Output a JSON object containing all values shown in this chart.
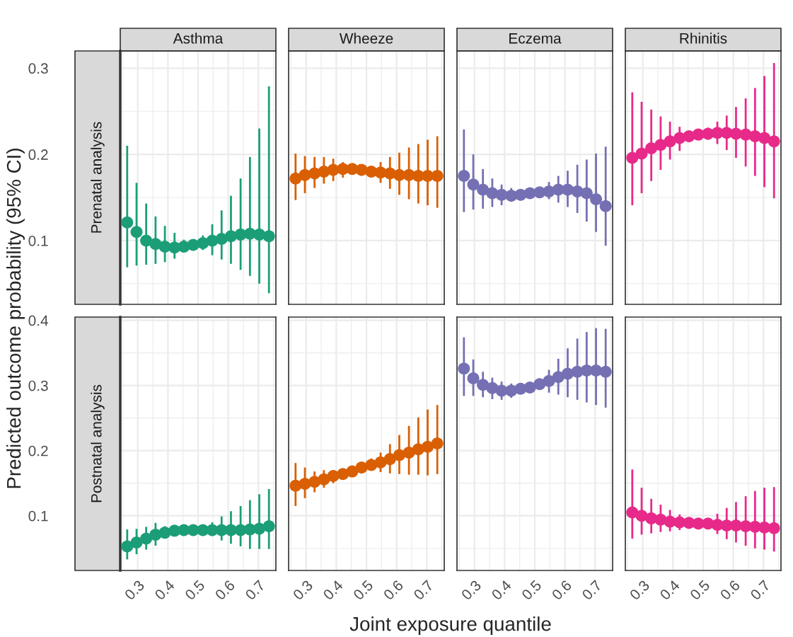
{
  "chart_data": [
    {
      "type": "scatter",
      "title": "Asthma",
      "ylabel": "Predicted outcome probability (95% CI)",
      "annotations": [
        "Prenatal analysis"
      ],
      "tick_labels": "y",
      "grid": true,
      "marker": "circle",
      "xlim": [
        0.242,
        0.758
      ],
      "ylim": [
        0.026,
        0.32
      ],
      "xticks": [
        0.3,
        0.4,
        0.5,
        0.6,
        0.7
      ],
      "yticks": [
        0.1,
        0.2,
        0.3
      ],
      "x": [
        0.265,
        0.296,
        0.328,
        0.359,
        0.39,
        0.422,
        0.453,
        0.484,
        0.516,
        0.547,
        0.578,
        0.609,
        0.641,
        0.672,
        0.703,
        0.735
      ],
      "series": [
        {
          "color": "#1b9e77",
          "values": [
            0.121,
            0.11,
            0.1,
            0.096,
            0.093,
            0.092,
            0.093,
            0.095,
            0.097,
            0.1,
            0.102,
            0.105,
            0.107,
            0.108,
            0.107,
            0.105
          ],
          "errors": [
            [
              0.069,
              0.21
            ],
            [
              0.071,
              0.167
            ],
            [
              0.072,
              0.143
            ],
            [
              0.073,
              0.128
            ],
            [
              0.075,
              0.117
            ],
            [
              0.079,
              0.109
            ],
            [
              0.087,
              0.101
            ],
            null,
            [
              0.089,
              0.106
            ],
            [
              0.083,
              0.119
            ],
            [
              0.078,
              0.135
            ],
            [
              0.073,
              0.152
            ],
            [
              0.066,
              0.172
            ],
            [
              0.059,
              0.197
            ],
            [
              0.05,
              0.23
            ],
            [
              0.039,
              0.279
            ]
          ]
        }
      ]
    },
    {
      "type": "scatter",
      "title": "Wheeze",
      "tick_labels": false,
      "grid": true,
      "marker": "circle",
      "xlim": [
        0.242,
        0.758
      ],
      "ylim": [
        0.026,
        0.32
      ],
      "xticks": [
        0.3,
        0.4,
        0.5,
        0.6,
        0.7
      ],
      "yticks": [
        0.1,
        0.2,
        0.3
      ],
      "x": [
        0.265,
        0.296,
        0.328,
        0.359,
        0.39,
        0.422,
        0.453,
        0.484,
        0.516,
        0.547,
        0.578,
        0.609,
        0.641,
        0.672,
        0.703,
        0.735
      ],
      "series": [
        {
          "color": "#d95f02",
          "values": [
            0.172,
            0.176,
            0.178,
            0.18,
            0.182,
            0.183,
            0.183,
            0.182,
            0.18,
            0.179,
            0.178,
            0.176,
            0.176,
            0.175,
            0.175,
            0.175
          ],
          "errors": [
            [
              0.147,
              0.201
            ],
            [
              0.155,
              0.198
            ],
            [
              0.161,
              0.197
            ],
            [
              0.166,
              0.197
            ],
            [
              0.169,
              0.195
            ],
            [
              0.173,
              0.191
            ],
            [
              0.18,
              0.186
            ],
            [
              0.179,
              0.185
            ],
            [
              0.177,
              0.183
            ],
            [
              0.167,
              0.191
            ],
            [
              0.16,
              0.197
            ],
            [
              0.153,
              0.202
            ],
            [
              0.148,
              0.208
            ],
            [
              0.143,
              0.212
            ],
            [
              0.141,
              0.217
            ],
            [
              0.138,
              0.221
            ]
          ]
        }
      ]
    },
    {
      "type": "scatter",
      "title": "Eczema",
      "tick_labels": false,
      "grid": true,
      "marker": "circle",
      "xlim": [
        0.242,
        0.758
      ],
      "ylim": [
        0.026,
        0.32
      ],
      "xticks": [
        0.3,
        0.4,
        0.5,
        0.6,
        0.7
      ],
      "yticks": [
        0.1,
        0.2,
        0.3
      ],
      "x": [
        0.265,
        0.296,
        0.328,
        0.359,
        0.39,
        0.422,
        0.453,
        0.484,
        0.516,
        0.547,
        0.578,
        0.609,
        0.641,
        0.672,
        0.703,
        0.735
      ],
      "series": [
        {
          "color": "#7570b3",
          "values": [
            0.175,
            0.165,
            0.159,
            0.155,
            0.153,
            0.152,
            0.153,
            0.155,
            0.156,
            0.157,
            0.159,
            0.159,
            0.157,
            0.155,
            0.148,
            0.14
          ],
          "errors": [
            [
              0.133,
              0.229
            ],
            [
              0.136,
              0.2
            ],
            [
              0.137,
              0.183
            ],
            [
              0.139,
              0.172
            ],
            [
              0.141,
              0.165
            ],
            [
              0.145,
              0.161
            ],
            [
              0.15,
              0.156
            ],
            [
              0.152,
              0.158
            ],
            [
              0.153,
              0.159
            ],
            [
              0.148,
              0.168
            ],
            [
              0.144,
              0.175
            ],
            [
              0.139,
              0.181
            ],
            [
              0.132,
              0.188
            ],
            [
              0.122,
              0.194
            ],
            [
              0.11,
              0.201
            ],
            [
              0.094,
              0.209
            ]
          ]
        }
      ]
    },
    {
      "type": "scatter",
      "title": "Rhinitis",
      "tick_labels": false,
      "grid": true,
      "marker": "circle",
      "xlim": [
        0.242,
        0.758
      ],
      "ylim": [
        0.026,
        0.32
      ],
      "xticks": [
        0.3,
        0.4,
        0.5,
        0.6,
        0.7
      ],
      "yticks": [
        0.1,
        0.2,
        0.3
      ],
      "x": [
        0.265,
        0.296,
        0.328,
        0.359,
        0.39,
        0.422,
        0.453,
        0.484,
        0.516,
        0.547,
        0.578,
        0.609,
        0.641,
        0.672,
        0.703,
        0.735
      ],
      "series": [
        {
          "color": "#e7298a",
          "values": [
            0.196,
            0.201,
            0.207,
            0.211,
            0.215,
            0.219,
            0.221,
            0.223,
            0.224,
            0.225,
            0.225,
            0.224,
            0.223,
            0.221,
            0.219,
            0.215
          ],
          "errors": [
            [
              0.141,
              0.272
            ],
            [
              0.155,
              0.261
            ],
            [
              0.169,
              0.252
            ],
            [
              0.182,
              0.244
            ],
            [
              0.194,
              0.238
            ],
            [
              0.204,
              0.232
            ],
            [
              0.218,
              0.224
            ],
            [
              0.22,
              0.226
            ],
            [
              0.217,
              0.231
            ],
            [
              0.212,
              0.238
            ],
            [
              0.205,
              0.245
            ],
            [
              0.196,
              0.255
            ],
            [
              0.186,
              0.265
            ],
            [
              0.175,
              0.277
            ],
            [
              0.162,
              0.291
            ],
            [
              0.149,
              0.306
            ]
          ]
        }
      ]
    },
    {
      "type": "scatter",
      "xlabel": "Joint exposure quantile",
      "annotations": [
        "Postnatal analysis"
      ],
      "grid": true,
      "marker": "circle",
      "xlim": [
        0.242,
        0.758
      ],
      "ylim": [
        0.016,
        0.405
      ],
      "xticks": [
        0.3,
        0.4,
        0.5,
        0.6,
        0.7
      ],
      "yticks": [
        0.1,
        0.2,
        0.3,
        0.4
      ],
      "x": [
        0.265,
        0.296,
        0.328,
        0.359,
        0.39,
        0.422,
        0.453,
        0.484,
        0.516,
        0.547,
        0.578,
        0.609,
        0.641,
        0.672,
        0.703,
        0.735
      ],
      "series": [
        {
          "color": "#1b9e77",
          "values": [
            0.053,
            0.059,
            0.065,
            0.071,
            0.074,
            0.077,
            0.078,
            0.078,
            0.078,
            0.078,
            0.078,
            0.078,
            0.078,
            0.079,
            0.08,
            0.084
          ],
          "errors": [
            [
              0.033,
              0.079
            ],
            [
              0.041,
              0.08
            ],
            [
              0.048,
              0.083
            ],
            [
              0.054,
              0.089
            ],
            [
              0.066,
              0.084
            ],
            [
              0.071,
              0.083
            ],
            null,
            null,
            [
              0.073,
              0.084
            ],
            [
              0.069,
              0.09
            ],
            [
              0.062,
              0.099
            ],
            [
              0.057,
              0.107
            ],
            [
              0.053,
              0.115
            ],
            [
              0.049,
              0.124
            ],
            [
              0.049,
              0.133
            ],
            [
              0.049,
              0.141
            ]
          ]
        }
      ]
    },
    {
      "type": "scatter",
      "tick_labels": "x",
      "grid": true,
      "marker": "circle",
      "xlim": [
        0.242,
        0.758
      ],
      "ylim": [
        0.016,
        0.405
      ],
      "xticks": [
        0.3,
        0.4,
        0.5,
        0.6,
        0.7
      ],
      "yticks": [
        0.1,
        0.2,
        0.3,
        0.4
      ],
      "x": [
        0.265,
        0.296,
        0.328,
        0.359,
        0.39,
        0.422,
        0.453,
        0.484,
        0.516,
        0.547,
        0.578,
        0.609,
        0.641,
        0.672,
        0.703,
        0.735
      ],
      "series": [
        {
          "color": "#d95f02",
          "values": [
            0.146,
            0.149,
            0.152,
            0.156,
            0.161,
            0.164,
            0.168,
            0.174,
            0.178,
            0.182,
            0.187,
            0.193,
            0.197,
            0.202,
            0.206,
            0.211
          ],
          "errors": [
            [
              0.115,
              0.181
            ],
            [
              0.127,
              0.174
            ],
            [
              0.136,
              0.168
            ],
            [
              0.143,
              0.17
            ],
            [
              0.15,
              0.17
            ],
            [
              0.161,
              0.167
            ],
            [
              0.165,
              0.171
            ],
            [
              0.171,
              0.177
            ],
            [
              0.17,
              0.188
            ],
            [
              0.167,
              0.197
            ],
            [
              0.165,
              0.21
            ],
            [
              0.164,
              0.224
            ],
            [
              0.163,
              0.238
            ],
            [
              0.163,
              0.251
            ],
            [
              0.162,
              0.263
            ],
            [
              0.164,
              0.27
            ]
          ]
        }
      ]
    },
    {
      "type": "scatter",
      "tick_labels": "x",
      "grid": true,
      "marker": "circle",
      "xlim": [
        0.242,
        0.758
      ],
      "ylim": [
        0.016,
        0.405
      ],
      "xticks": [
        0.3,
        0.4,
        0.5,
        0.6,
        0.7
      ],
      "yticks": [
        0.1,
        0.2,
        0.3,
        0.4
      ],
      "x": [
        0.265,
        0.296,
        0.328,
        0.359,
        0.39,
        0.422,
        0.453,
        0.484,
        0.516,
        0.547,
        0.578,
        0.609,
        0.641,
        0.672,
        0.703,
        0.735
      ],
      "series": [
        {
          "color": "#7570b3",
          "values": [
            0.326,
            0.311,
            0.301,
            0.296,
            0.292,
            0.292,
            0.295,
            0.297,
            0.302,
            0.307,
            0.313,
            0.318,
            0.321,
            0.323,
            0.323,
            0.321
          ],
          "errors": [
            [
              0.284,
              0.374
            ],
            [
              0.284,
              0.34
            ],
            [
              0.282,
              0.321
            ],
            [
              0.279,
              0.312
            ],
            [
              0.278,
              0.306
            ],
            [
              0.281,
              0.303
            ],
            [
              0.291,
              0.299
            ],
            [
              0.294,
              0.3
            ],
            [
              0.295,
              0.307
            ],
            [
              0.289,
              0.324
            ],
            [
              0.286,
              0.341
            ],
            [
              0.282,
              0.357
            ],
            [
              0.278,
              0.372
            ],
            [
              0.274,
              0.382
            ],
            [
              0.27,
              0.388
            ],
            [
              0.266,
              0.387
            ]
          ]
        }
      ]
    },
    {
      "type": "scatter",
      "tick_labels": "x",
      "grid": true,
      "marker": "circle",
      "xlim": [
        0.242,
        0.758
      ],
      "ylim": [
        0.016,
        0.405
      ],
      "xticks": [
        0.3,
        0.4,
        0.5,
        0.6,
        0.7
      ],
      "yticks": [
        0.1,
        0.2,
        0.3,
        0.4
      ],
      "x": [
        0.265,
        0.296,
        0.328,
        0.359,
        0.39,
        0.422,
        0.453,
        0.484,
        0.516,
        0.547,
        0.578,
        0.609,
        0.641,
        0.672,
        0.703,
        0.735
      ],
      "series": [
        {
          "color": "#e7298a",
          "values": [
            0.105,
            0.1,
            0.096,
            0.094,
            0.091,
            0.09,
            0.089,
            0.088,
            0.088,
            0.086,
            0.085,
            0.085,
            0.084,
            0.083,
            0.082,
            0.081
          ],
          "errors": [
            [
              0.065,
              0.171
            ],
            [
              0.071,
              0.143
            ],
            [
              0.073,
              0.126
            ],
            [
              0.075,
              0.117
            ],
            [
              0.076,
              0.109
            ],
            [
              0.078,
              0.102
            ],
            [
              0.085,
              0.093
            ],
            [
              0.084,
              0.092
            ],
            [
              0.083,
              0.093
            ],
            [
              0.072,
              0.103
            ],
            [
              0.064,
              0.112
            ],
            [
              0.059,
              0.121
            ],
            [
              0.054,
              0.13
            ],
            [
              0.05,
              0.138
            ],
            [
              0.048,
              0.143
            ],
            [
              0.045,
              0.144
            ]
          ]
        }
      ]
    }
  ]
}
